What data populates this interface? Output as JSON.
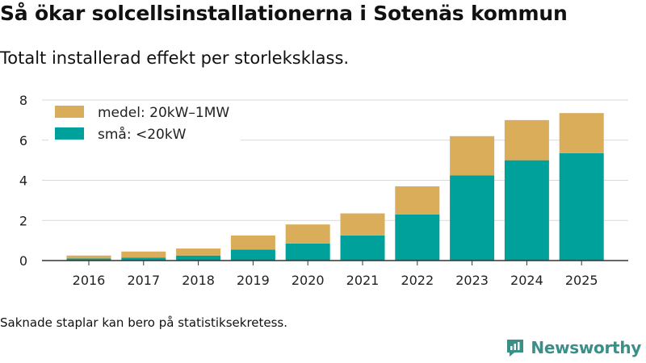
{
  "header": {
    "title": "Så ökar solcellsinstallationerna i Sotenäs kommun",
    "subtitle": "Totalt installerad effekt per storleksklass."
  },
  "footer": {
    "note": "Saknade staplar kan bero på statistiksekretess.",
    "brand": "Newsworthy"
  },
  "colors": {
    "small": "#00a19a",
    "medium": "#d9ad5a",
    "grid": "#d9d9d9",
    "axis": "#333333",
    "brand": "#3a8f86"
  },
  "chart_data": {
    "type": "bar",
    "stacked": true,
    "title": "Så ökar solcellsinstallationerna i Sotenäs kommun",
    "subtitle": "Totalt installerad effekt per storleksklass.",
    "xlabel": "",
    "ylabel": "",
    "categories": [
      "2016",
      "2017",
      "2018",
      "2019",
      "2020",
      "2021",
      "2022",
      "2023",
      "2024",
      "2025"
    ],
    "series": [
      {
        "name": "små: <20kW",
        "values": [
          0.1,
          0.15,
          0.25,
          0.55,
          0.85,
          1.25,
          2.3,
          4.25,
          5.0,
          5.35
        ]
      },
      {
        "name": "medel: 20kW–1MW",
        "values": [
          0.15,
          0.3,
          0.35,
          0.7,
          0.95,
          1.1,
          1.4,
          1.95,
          2.0,
          2.0
        ]
      }
    ],
    "legend_order": [
      "medel: 20kW–1MW",
      "små: <20kW"
    ],
    "yticks": [
      0,
      2,
      4,
      6,
      8
    ],
    "ylim": [
      0,
      8
    ],
    "grid": true,
    "legend_position": "top-left"
  }
}
